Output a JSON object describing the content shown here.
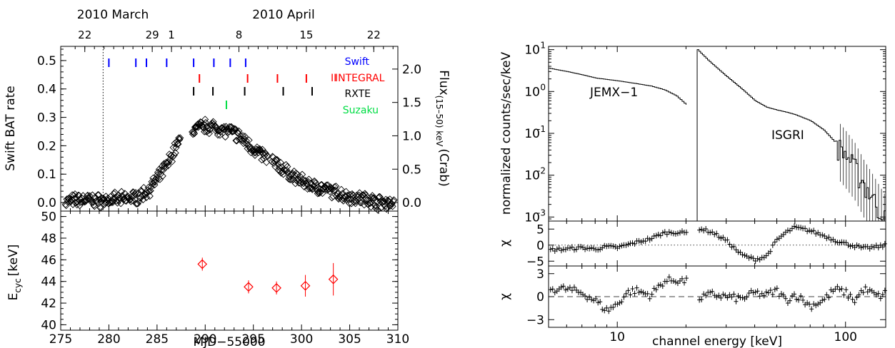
{
  "left_figure": {
    "top_axis": {
      "months": [
        "2010 March",
        "2010 April"
      ],
      "days": [
        "22",
        "29",
        "1",
        "8",
        "15",
        "22"
      ],
      "day_mjd": [
        277.5,
        284.5,
        286.5,
        293.5,
        300.5,
        307.5
      ]
    },
    "upper_panel": {
      "ylabel": "Swift BAT rate",
      "ylabel_right": "Flux",
      "ylabel_right_sub": "(15–50) keV",
      "ylabel_right_unit": "(Crab)",
      "observatories": [
        {
          "name": "Swift",
          "color": "#0000ff",
          "mjd": [
            280.0,
            282.8,
            283.9,
            286.0,
            288.8,
            290.9,
            292.6,
            294.2
          ]
        },
        {
          "name": "INTEGRAL",
          "color": "#ff0000",
          "mjd": [
            289.4,
            294.4,
            297.5,
            300.5
          ]
        },
        {
          "name": "RXTE",
          "color": "#000000",
          "mjd": [
            288.8,
            290.8,
            294.1,
            298.1,
            301.1
          ]
        },
        {
          "name": "Suzaku",
          "color": "#00dd44",
          "mjd": [
            292.2
          ]
        }
      ],
      "integral_label_marks": "II"
    },
    "lower_panel": {
      "ylabel": "E",
      "ylabel_sub": "cyc",
      "ylabel_unit": "[keV]"
    },
    "xlabel": "MJD−55000",
    "chart_data": [
      {
        "type": "scatter",
        "title": "",
        "xlabel": "MJD−55000",
        "ylabel": "Swift BAT rate",
        "ylabel_right": "Flux (15–50) keV (Crab)",
        "xlim": [
          275,
          310
        ],
        "ylim": [
          -0.03,
          0.55
        ],
        "yticks": [
          0.0,
          0.1,
          0.2,
          0.3,
          0.4,
          0.5
        ],
        "yticks_right": [
          0.0,
          0.5,
          1.0,
          1.5,
          2.0
        ],
        "marker": "diamond",
        "vline_x": 279.4,
        "profile": [
          [
            275,
            0.0
          ],
          [
            276,
            0.005
          ],
          [
            277,
            0.01
          ],
          [
            278,
            0.01
          ],
          [
            279,
            0.005
          ],
          [
            280,
            0.01
          ],
          [
            281,
            0.01
          ],
          [
            282,
            0.015
          ],
          [
            283,
            0.02
          ],
          [
            284,
            0.04
          ],
          [
            285,
            0.08
          ],
          [
            286,
            0.13
          ],
          [
            287,
            0.2
          ],
          [
            288,
            0.24
          ],
          [
            289,
            0.26
          ],
          [
            290,
            0.27
          ],
          [
            291,
            0.265
          ],
          [
            292,
            0.255
          ],
          [
            293,
            0.245
          ],
          [
            294,
            0.22
          ],
          [
            295,
            0.19
          ],
          [
            296,
            0.165
          ],
          [
            297,
            0.145
          ],
          [
            298,
            0.12
          ],
          [
            299,
            0.095
          ],
          [
            300,
            0.075
          ],
          [
            301,
            0.06
          ],
          [
            302,
            0.05
          ],
          [
            303,
            0.04
          ],
          [
            304,
            0.03
          ],
          [
            305,
            0.02
          ],
          [
            306,
            0.015
          ],
          [
            307,
            0.01
          ],
          [
            308,
            0.0
          ],
          [
            309,
            0.0
          ],
          [
            310,
            0.0
          ]
        ],
        "text_labels": [
          "Swift",
          "INTEGRAL",
          "RXTE",
          "Suzaku"
        ]
      },
      {
        "type": "scatter",
        "title": "",
        "xlabel": "MJD−55000",
        "ylabel": "E_cyc [keV]",
        "xlim": [
          275,
          310
        ],
        "ylim": [
          39.5,
          50.5
        ],
        "xticks": [
          275,
          280,
          285,
          290,
          295,
          300,
          305,
          310
        ],
        "yticks": [
          40,
          42,
          44,
          46,
          48,
          50
        ],
        "color": "#ff0000",
        "marker": "diamond",
        "points": [
          {
            "x": 289.7,
            "y": 45.6,
            "yerr": 0.6
          },
          {
            "x": 294.5,
            "y": 43.5,
            "yerr": 0.6
          },
          {
            "x": 297.4,
            "y": 43.4,
            "yerr": 0.6
          },
          {
            "x": 300.4,
            "y": 43.6,
            "yerr": 1.0
          },
          {
            "x": 303.3,
            "y": 44.2,
            "yerr": 1.5
          }
        ]
      }
    ]
  },
  "right_figure": {
    "ylabel_top": "normalized counts/sec/keV",
    "ylabel_mid": "χ",
    "ylabel_bot": "χ",
    "xlabel": "channel energy [keV]",
    "instrument_labels": [
      "JEMX−1",
      "ISGRI"
    ],
    "chart_data": [
      {
        "type": "line",
        "title": "",
        "xlabel": "channel energy [keV]",
        "ylabel": "normalized counts/sec/keV",
        "xscale": "log",
        "yscale": "log",
        "xlim": [
          5,
          150
        ],
        "ylim": [
          0.0008,
          12
        ],
        "xticks": [
          10,
          100
        ],
        "yticks_labels": [
          "10⁻³",
          "10⁻²",
          "10⁻¹",
          "10⁰",
          "10¹"
        ],
        "series": [
          {
            "name": "JEMX−1",
            "points": [
              [
                5,
                3.6
              ],
              [
                6,
                3.0
              ],
              [
                7,
                2.5
              ],
              [
                8,
                2.1
              ],
              [
                10,
                1.8
              ],
              [
                12,
                1.55
              ],
              [
                14,
                1.35
              ],
              [
                16,
                1.1
              ],
              [
                18,
                0.8
              ],
              [
                20,
                0.48
              ]
            ]
          },
          {
            "name": "ISGRI",
            "points": [
              [
                22,
                11
              ],
              [
                25,
                5.5
              ],
              [
                30,
                2.3
              ],
              [
                35,
                1.15
              ],
              [
                40,
                0.6
              ],
              [
                45,
                0.42
              ],
              [
                50,
                0.36
              ],
              [
                55,
                0.32
              ],
              [
                60,
                0.28
              ],
              [
                70,
                0.2
              ],
              [
                80,
                0.12
              ],
              [
                90,
                0.06
              ],
              [
                100,
                0.03
              ],
              [
                110,
                0.015
              ],
              [
                120,
                0.006
              ],
              [
                130,
                0.003
              ],
              [
                140,
                0.0015
              ],
              [
                150,
                0.0008
              ]
            ]
          }
        ]
      },
      {
        "type": "scatter",
        "title": "",
        "ylabel": "χ",
        "xscale": "log",
        "xlim": [
          5,
          150
        ],
        "ylim": [
          -6.5,
          7.5
        ],
        "yticks": [
          -5,
          0,
          5
        ],
        "profile": [
          [
            5,
            -1.5
          ],
          [
            6,
            -1.2
          ],
          [
            7,
            -0.8
          ],
          [
            8,
            -1.2
          ],
          [
            9,
            -0.5
          ],
          [
            10,
            -0.8
          ],
          [
            12,
            0.8
          ],
          [
            14,
            2.0
          ],
          [
            16,
            3.8
          ],
          [
            18,
            4.0
          ],
          [
            20,
            3.8
          ],
          [
            23,
            5.2
          ],
          [
            26,
            4.0
          ],
          [
            30,
            1.5
          ],
          [
            35,
            -3.0
          ],
          [
            40,
            -4.5
          ],
          [
            45,
            -3.5
          ],
          [
            50,
            1.5
          ],
          [
            55,
            4.0
          ],
          [
            60,
            5.5
          ],
          [
            65,
            5.0
          ],
          [
            70,
            4.5
          ],
          [
            80,
            3.0
          ],
          [
            90,
            1.5
          ],
          [
            100,
            0.5
          ],
          [
            120,
            -1.0
          ],
          [
            140,
            -0.5
          ],
          [
            150,
            0.0
          ]
        ]
      },
      {
        "type": "scatter",
        "title": "",
        "xlabel": "channel energy [keV]",
        "ylabel": "χ",
        "xscale": "log",
        "xlim": [
          5,
          150
        ],
        "ylim": [
          -4,
          4
        ],
        "yticks": [
          -3,
          0,
          3
        ],
        "profile": [
          [
            5,
            1.0
          ],
          [
            6,
            1.0
          ],
          [
            7,
            0.5
          ],
          [
            8,
            -0.5
          ],
          [
            9,
            -1.8
          ],
          [
            10,
            -1.0
          ],
          [
            11,
            0.5
          ],
          [
            12,
            0.8
          ],
          [
            14,
            0.2
          ],
          [
            16,
            2.0
          ],
          [
            18,
            2.2
          ],
          [
            20,
            2.0
          ],
          [
            23,
            -0.2
          ],
          [
            26,
            0.3
          ],
          [
            30,
            0.0
          ],
          [
            35,
            -0.3
          ],
          [
            40,
            0.5
          ],
          [
            45,
            0.2
          ],
          [
            50,
            0.8
          ],
          [
            55,
            -0.5
          ],
          [
            60,
            0.3
          ],
          [
            70,
            -1.2
          ],
          [
            80,
            -0.5
          ],
          [
            90,
            1.0
          ],
          [
            100,
            0.5
          ],
          [
            110,
            -0.5
          ],
          [
            120,
            1.0
          ],
          [
            140,
            0.0
          ],
          [
            150,
            0.5
          ]
        ]
      }
    ]
  }
}
